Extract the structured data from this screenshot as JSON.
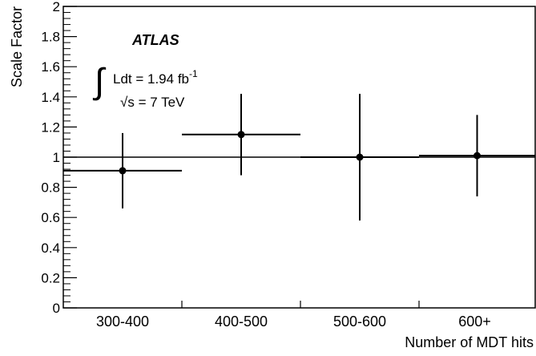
{
  "chart_data": {
    "type": "scatter",
    "xlabel": "Number of MDT hits",
    "ylabel": "Scale Factor",
    "categories": [
      "300-400",
      "400-500",
      "500-600",
      "600+"
    ],
    "ylim": [
      0,
      2
    ],
    "yticks": [
      "0",
      "0.2",
      "0.4",
      "0.6",
      "0.8",
      "1",
      "1.2",
      "1.4",
      "1.6",
      "1.8",
      "2"
    ],
    "reference_line": 1,
    "points": [
      {
        "category": "300-400",
        "value": 0.91,
        "err_low": 0.25,
        "err_high": 0.25
      },
      {
        "category": "400-500",
        "value": 1.15,
        "err_low": 0.27,
        "err_high": 0.27
      },
      {
        "category": "500-600",
        "value": 1.0,
        "err_low": 0.42,
        "err_high": 0.42
      },
      {
        "category": "600+",
        "value": 1.01,
        "err_low": 0.27,
        "err_high": 0.27
      }
    ],
    "annotations": {
      "experiment": "ATLAS",
      "lumi_prefix": "∫",
      "lumi_text": "Ldt = 1.94 fb",
      "lumi_exp": "-1",
      "sqrt_symbol": "√",
      "energy_text": "s = 7 TeV"
    },
    "grid": false,
    "colors": {
      "marker": "#000000",
      "line": "#000000"
    }
  }
}
